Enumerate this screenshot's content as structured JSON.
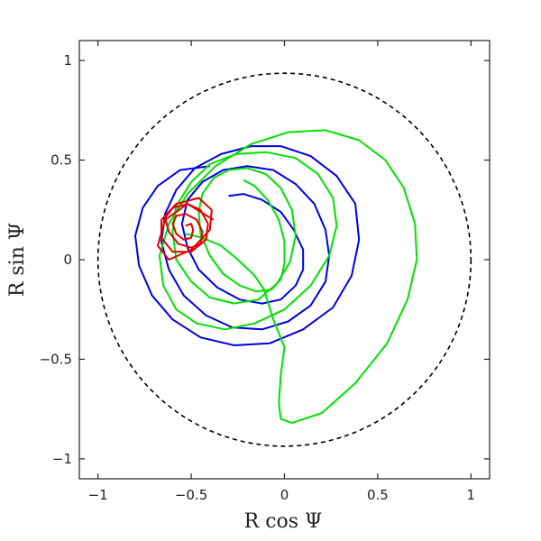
{
  "chart_data": {
    "type": "line",
    "title": "",
    "xlabel": "R cos Ψ",
    "ylabel": "R sin Ψ",
    "xlim": [
      -1.1,
      1.1
    ],
    "ylim": [
      -1.1,
      1.1
    ],
    "grid": false,
    "legend": "none",
    "x_ticks": [
      {
        "value": -1,
        "label": "−1"
      },
      {
        "value": -0.5,
        "label": "−0.5"
      },
      {
        "value": 0,
        "label": "0"
      },
      {
        "value": 0.5,
        "label": "0.5"
      },
      {
        "value": 1,
        "label": "1"
      }
    ],
    "y_ticks": [
      {
        "value": -1,
        "label": "−1"
      },
      {
        "value": -0.5,
        "label": "−0.5"
      },
      {
        "value": 0,
        "label": "0"
      },
      {
        "value": 0.5,
        "label": "0.5"
      },
      {
        "value": 1,
        "label": "1"
      }
    ],
    "reference_circle": {
      "center": [
        0,
        0
      ],
      "radius": 1,
      "color": "#000000",
      "style": "dashed"
    },
    "series": [
      {
        "color": "#0000e0",
        "x": [
          -0.3,
          -0.22,
          -0.12,
          -0.02,
          0.05,
          0.1,
          0.1,
          0.06,
          -0.02,
          -0.12,
          -0.24,
          -0.36,
          -0.46,
          -0.52,
          -0.55,
          -0.52,
          -0.44,
          -0.33,
          -0.2,
          -0.06,
          0.06,
          0.16,
          0.22,
          0.24,
          0.22,
          0.14,
          0.02,
          -0.12,
          -0.28,
          -0.42,
          -0.54,
          -0.62,
          -0.66,
          -0.64,
          -0.58,
          -0.48,
          -0.34,
          -0.18,
          -0.02,
          0.14,
          0.28,
          0.38,
          0.4,
          0.36,
          0.26,
          0.1,
          -0.08,
          -0.27,
          -0.45,
          -0.6,
          -0.71,
          -0.78,
          -0.8,
          -0.76,
          -0.68,
          -0.56,
          -0.4
        ],
        "y": [
          0.32,
          0.33,
          0.3,
          0.24,
          0.15,
          0.05,
          -0.05,
          -0.13,
          -0.2,
          -0.22,
          -0.2,
          -0.14,
          -0.05,
          0.06,
          0.18,
          0.3,
          0.39,
          0.45,
          0.47,
          0.45,
          0.38,
          0.28,
          0.15,
          0.02,
          -0.11,
          -0.23,
          -0.31,
          -0.35,
          -0.34,
          -0.28,
          -0.18,
          -0.05,
          0.09,
          0.23,
          0.35,
          0.46,
          0.53,
          0.57,
          0.57,
          0.52,
          0.42,
          0.28,
          0.1,
          -0.08,
          -0.24,
          -0.35,
          -0.42,
          -0.43,
          -0.39,
          -0.3,
          -0.18,
          -0.03,
          0.12,
          0.26,
          0.37,
          0.45,
          0.47
        ]
      },
      {
        "color": "#00e000",
        "x": [
          -0.22,
          -0.16,
          -0.09,
          -0.03,
          0.0,
          0.0,
          -0.02,
          -0.07,
          -0.15,
          -0.24,
          -0.33,
          -0.4,
          -0.45,
          -0.46,
          -0.44,
          -0.38,
          -0.3,
          -0.2,
          -0.1,
          -0.02,
          0.04,
          0.06,
          0.03,
          -0.04,
          -0.14,
          -0.27,
          -0.4,
          -0.5,
          -0.58,
          -0.6,
          -0.58,
          -0.5,
          -0.4,
          -0.26,
          -0.1,
          0.06,
          0.18,
          0.26,
          0.28,
          0.24,
          0.14,
          0.0,
          -0.16,
          -0.32,
          -0.47,
          -0.58,
          -0.65,
          -0.67,
          -0.62,
          -0.52,
          -0.37,
          -0.18,
          0.02,
          0.22,
          0.4,
          0.54,
          0.64,
          0.7,
          0.71,
          0.66,
          0.55,
          0.38,
          0.2,
          0.04,
          -0.02,
          -0.03,
          -0.02,
          0.0,
          -0.06,
          -0.11,
          -0.16,
          -0.25,
          -0.34,
          -0.44,
          -0.53
        ],
        "y": [
          0.4,
          0.37,
          0.3,
          0.2,
          0.09,
          -0.02,
          -0.1,
          -0.15,
          -0.16,
          -0.13,
          -0.07,
          0.02,
          0.13,
          0.24,
          0.33,
          0.41,
          0.45,
          0.46,
          0.43,
          0.36,
          0.25,
          0.12,
          -0.01,
          -0.12,
          -0.2,
          -0.22,
          -0.19,
          -0.11,
          0.0,
          0.14,
          0.27,
          0.39,
          0.48,
          0.53,
          0.54,
          0.51,
          0.43,
          0.31,
          0.17,
          0.02,
          -0.13,
          -0.25,
          -0.32,
          -0.35,
          -0.32,
          -0.25,
          -0.13,
          0.02,
          0.18,
          0.33,
          0.47,
          0.58,
          0.64,
          0.65,
          0.6,
          0.5,
          0.36,
          0.18,
          0.0,
          -0.2,
          -0.42,
          -0.62,
          -0.77,
          -0.82,
          -0.8,
          -0.72,
          -0.58,
          -0.44,
          -0.3,
          -0.15,
          -0.08,
          0.0,
          0.07,
          0.11,
          0.13
        ]
      },
      {
        "color": "#e00000",
        "x": [
          -0.53,
          -0.5,
          -0.49,
          -0.5,
          -0.54,
          -0.58,
          -0.6,
          -0.58,
          -0.53,
          -0.47,
          -0.44,
          -0.45,
          -0.5,
          -0.57,
          -0.62,
          -0.64,
          -0.6,
          -0.52,
          -0.45,
          -0.41,
          -0.42,
          -0.5,
          -0.6,
          -0.66,
          -0.66,
          -0.58,
          -0.46,
          -0.39,
          -0.4,
          -0.5,
          -0.62,
          -0.68,
          -0.64,
          -0.52,
          -0.38
        ],
        "y": [
          0.17,
          0.18,
          0.15,
          0.11,
          0.1,
          0.13,
          0.18,
          0.22,
          0.23,
          0.2,
          0.14,
          0.08,
          0.06,
          0.08,
          0.14,
          0.21,
          0.26,
          0.28,
          0.25,
          0.18,
          0.1,
          0.04,
          0.04,
          0.11,
          0.2,
          0.28,
          0.31,
          0.25,
          0.15,
          0.05,
          0.0,
          0.07,
          0.2,
          0.28,
          0.2
        ]
      }
    ]
  }
}
